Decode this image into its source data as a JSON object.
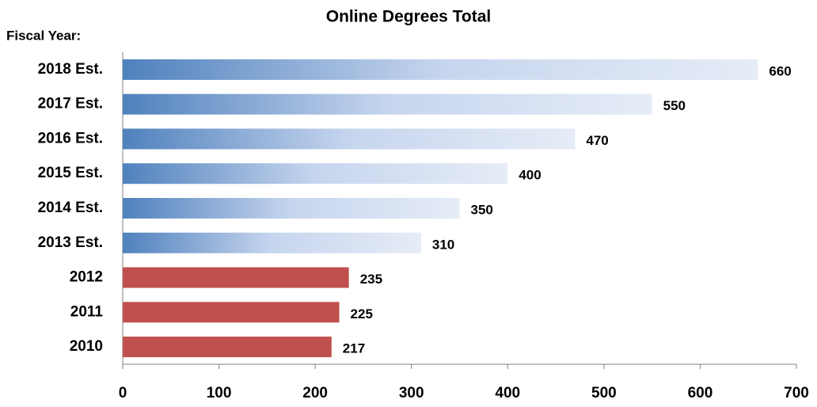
{
  "chart_data": {
    "type": "hbar",
    "title": "Online Degrees Total",
    "axis_label": "Fiscal Year:",
    "categories": [
      "2018 Est.",
      "2017 Est.",
      "2016 Est.",
      "2015 Est.",
      "2014 Est.",
      "2013 Est.",
      "2012",
      "2011",
      "2010"
    ],
    "values": [
      660,
      550,
      470,
      400,
      350,
      310,
      235,
      225,
      217
    ],
    "colors": [
      "#4f81bd",
      "#4f81bd",
      "#4f81bd",
      "#4f81bd",
      "#4f81bd",
      "#4f81bd",
      "#c0504d",
      "#c0504d",
      "#c0504d"
    ],
    "xlim": [
      0,
      700
    ],
    "xticks": [
      0,
      100,
      200,
      300,
      400,
      500,
      600,
      700
    ],
    "grid": false
  }
}
